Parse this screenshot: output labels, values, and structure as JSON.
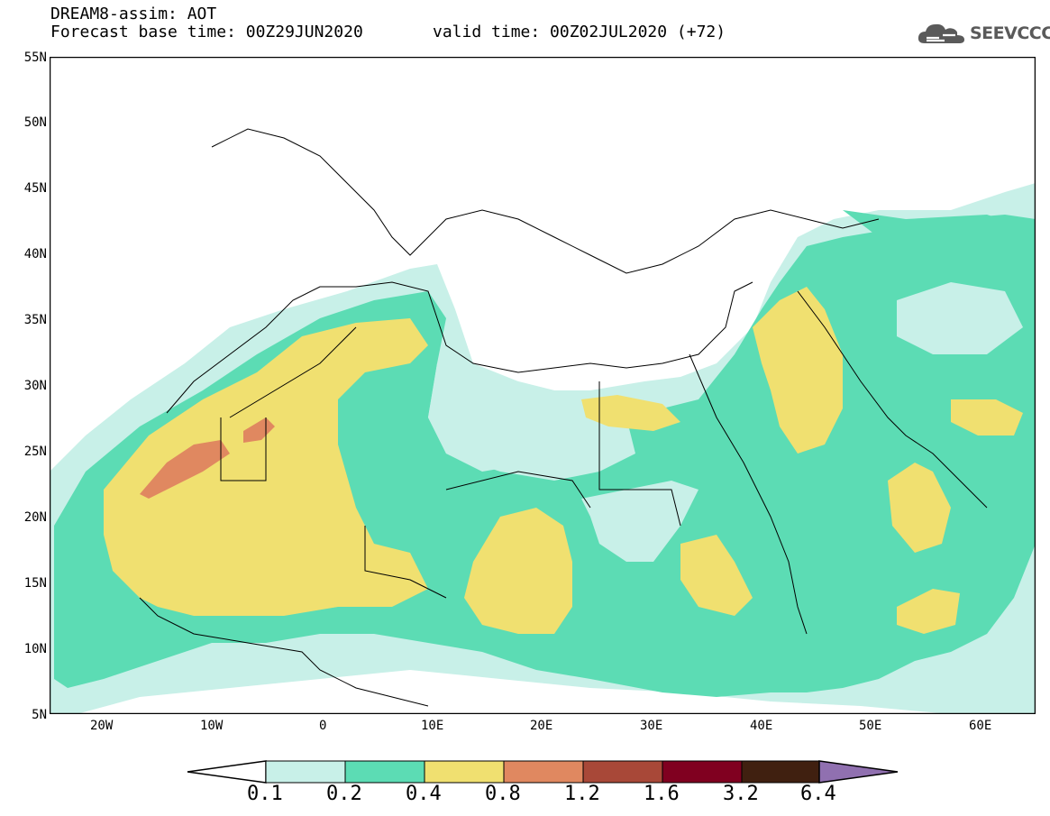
{
  "header": {
    "line1": "DREAM8-assim: AOT",
    "line2a": "Forecast base time: 00Z29JUN2020",
    "line2b": "valid time: 00Z02JUL2020 (+72)",
    "logo_text": "SEEVCCC",
    "logo_icon": "cloud-icon"
  },
  "axes": {
    "lat_labels": [
      "55N",
      "50N",
      "45N",
      "40N",
      "35N",
      "30N",
      "25N",
      "20N",
      "15N",
      "10N",
      "5N"
    ],
    "lon_labels": [
      "20W",
      "10W",
      "0",
      "10E",
      "20E",
      "30E",
      "40E",
      "50E",
      "60E"
    ],
    "lat_range": [
      5,
      55
    ],
    "lon_range": [
      -25,
      65
    ]
  },
  "colorbar": {
    "levels": [
      "0.1",
      "0.2",
      "0.4",
      "0.8",
      "1.2",
      "1.6",
      "3.2",
      "6.4"
    ],
    "colors": [
      "#c8f0e8",
      "#5cdcb4",
      "#f0e070",
      "#e08860",
      "#a84838",
      "#800020",
      "#402010",
      "#9070b0"
    ],
    "under_color": "#ffffff",
    "over_color": "#9070b0"
  },
  "field_colors": {
    "low": "#c8f0e8",
    "mid": "#5cdcb4",
    "high": "#f0e070",
    "very_high": "#e08860"
  }
}
